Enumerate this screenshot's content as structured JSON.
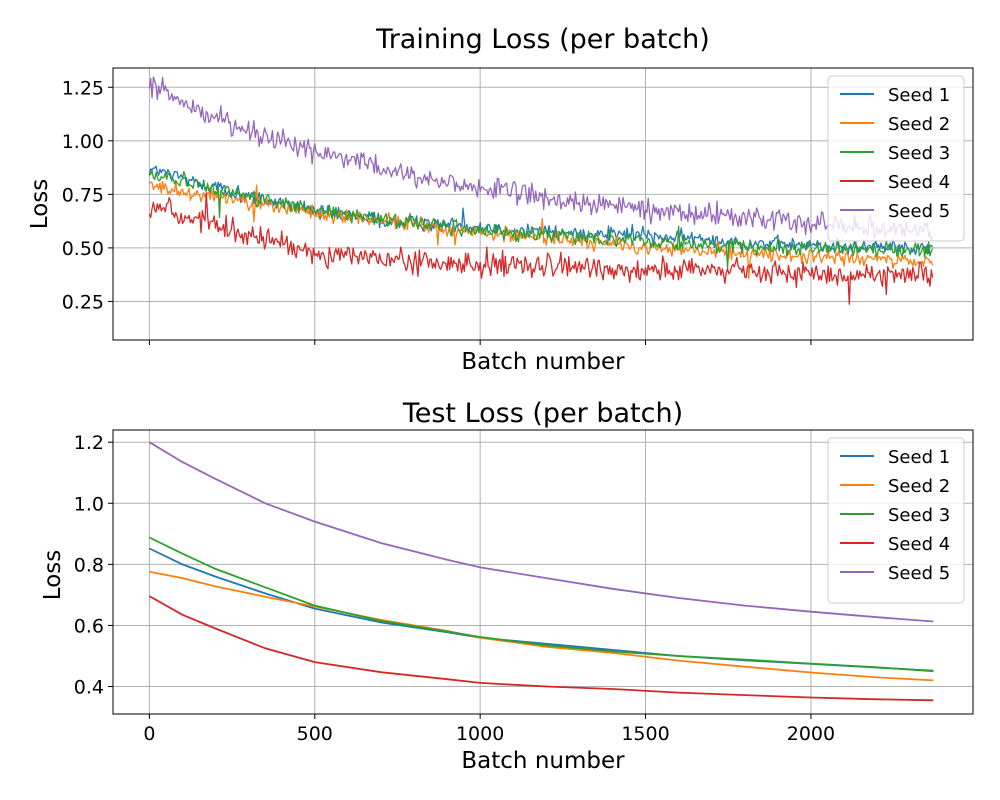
{
  "figure": {
    "colors": {
      "Seed 1": "#1f77b4",
      "Seed 2": "#ff7f0e",
      "Seed 3": "#2ca02c",
      "Seed 4": "#d62728",
      "Seed 5": "#9467bd"
    }
  },
  "chart_data": [
    {
      "type": "line",
      "title": "Training Loss (per batch)",
      "xlabel": "Batch number",
      "ylabel": "Loss",
      "xlim": [
        -110,
        2490
      ],
      "ylim": [
        0.07,
        1.34
      ],
      "xticks": [
        0,
        500,
        1000,
        1500,
        2000
      ],
      "xtick_labels_visible": false,
      "yticks": [
        0.25,
        0.5,
        0.75,
        1.0
      ],
      "ytick_labels": [
        "0.25",
        "0.50",
        "0.75",
        "1.00"
      ],
      "ytick_top": 1.25,
      "ytick_top_label": "1.25",
      "grid": true,
      "legend": "top-right",
      "noisy": true,
      "series": [
        {
          "name": "Seed 1",
          "x": [
            0,
            250,
            500,
            750,
            1000,
            1250,
            1500,
            1750,
            2000,
            2370
          ],
          "values": [
            0.87,
            0.76,
            0.67,
            0.62,
            0.6,
            0.57,
            0.56,
            0.53,
            0.51,
            0.5
          ],
          "noise": 0.025
        },
        {
          "name": "Seed 2",
          "x": [
            0,
            250,
            500,
            750,
            1000,
            1250,
            1500,
            1750,
            2000,
            2370
          ],
          "values": [
            0.79,
            0.73,
            0.66,
            0.62,
            0.57,
            0.54,
            0.5,
            0.48,
            0.46,
            0.43
          ],
          "noise": 0.025
        },
        {
          "name": "Seed 3",
          "x": [
            0,
            250,
            500,
            750,
            1000,
            1250,
            1500,
            1750,
            2000,
            2370
          ],
          "values": [
            0.85,
            0.76,
            0.67,
            0.63,
            0.58,
            0.56,
            0.53,
            0.51,
            0.5,
            0.49
          ],
          "noise": 0.025
        },
        {
          "name": "Seed 4",
          "x": [
            0,
            250,
            500,
            750,
            1000,
            1250,
            1500,
            1750,
            2000,
            2370
          ],
          "values": [
            0.7,
            0.58,
            0.48,
            0.44,
            0.42,
            0.41,
            0.4,
            0.39,
            0.38,
            0.37
          ],
          "noise": 0.04
        },
        {
          "name": "Seed 5",
          "x": [
            0,
            250,
            500,
            750,
            1000,
            1250,
            1500,
            1750,
            2000,
            2370
          ],
          "values": [
            1.25,
            1.08,
            0.95,
            0.85,
            0.78,
            0.72,
            0.68,
            0.65,
            0.62,
            0.58
          ],
          "noise": 0.035
        }
      ]
    },
    {
      "type": "line",
      "title": "Test Loss (per batch)",
      "xlabel": "Batch number",
      "ylabel": "Loss",
      "xlim": [
        -110,
        2490
      ],
      "ylim": [
        0.31,
        1.24
      ],
      "xticks": [
        0,
        500,
        1000,
        1500,
        2000
      ],
      "xtick_labels": [
        "0",
        "500",
        "1000",
        "1500",
        "2000"
      ],
      "xtick_labels_visible": true,
      "yticks": [
        0.4,
        0.6,
        0.8,
        1.0,
        1.2
      ],
      "ytick_labels": [
        "0.4",
        "0.6",
        "0.8",
        "1.0",
        "1.2"
      ],
      "grid": true,
      "legend": "top-right",
      "noisy": false,
      "series": [
        {
          "name": "Seed 1",
          "x": [
            0,
            100,
            200,
            350,
            500,
            700,
            900,
            1000,
            1200,
            1400,
            1600,
            1800,
            2000,
            2200,
            2370
          ],
          "values": [
            0.852,
            0.8,
            0.76,
            0.705,
            0.655,
            0.61,
            0.578,
            0.56,
            0.54,
            0.52,
            0.5,
            0.486,
            0.474,
            0.462,
            0.452
          ]
        },
        {
          "name": "Seed 2",
          "x": [
            0,
            100,
            200,
            350,
            500,
            700,
            900,
            1000,
            1200,
            1400,
            1600,
            1800,
            2000,
            2200,
            2370
          ],
          "values": [
            0.776,
            0.755,
            0.728,
            0.694,
            0.662,
            0.618,
            0.582,
            0.56,
            0.53,
            0.51,
            0.485,
            0.465,
            0.446,
            0.43,
            0.42
          ]
        },
        {
          "name": "Seed 3",
          "x": [
            0,
            100,
            200,
            350,
            500,
            700,
            900,
            1000,
            1200,
            1400,
            1600,
            1800,
            2000,
            2200,
            2370
          ],
          "values": [
            0.888,
            0.835,
            0.785,
            0.725,
            0.665,
            0.615,
            0.58,
            0.562,
            0.535,
            0.515,
            0.5,
            0.488,
            0.475,
            0.463,
            0.45
          ]
        },
        {
          "name": "Seed 4",
          "x": [
            0,
            100,
            200,
            350,
            500,
            700,
            900,
            1000,
            1200,
            1400,
            1600,
            1800,
            2000,
            2200,
            2370
          ],
          "values": [
            0.696,
            0.635,
            0.59,
            0.525,
            0.48,
            0.447,
            0.424,
            0.412,
            0.4,
            0.392,
            0.38,
            0.372,
            0.364,
            0.358,
            0.355
          ]
        },
        {
          "name": "Seed 5",
          "x": [
            0,
            100,
            200,
            350,
            500,
            700,
            900,
            1000,
            1200,
            1400,
            1600,
            1800,
            2000,
            2200,
            2370
          ],
          "values": [
            1.2,
            1.135,
            1.08,
            1.0,
            0.94,
            0.87,
            0.815,
            0.79,
            0.755,
            0.72,
            0.69,
            0.665,
            0.645,
            0.627,
            0.613
          ]
        }
      ]
    }
  ]
}
